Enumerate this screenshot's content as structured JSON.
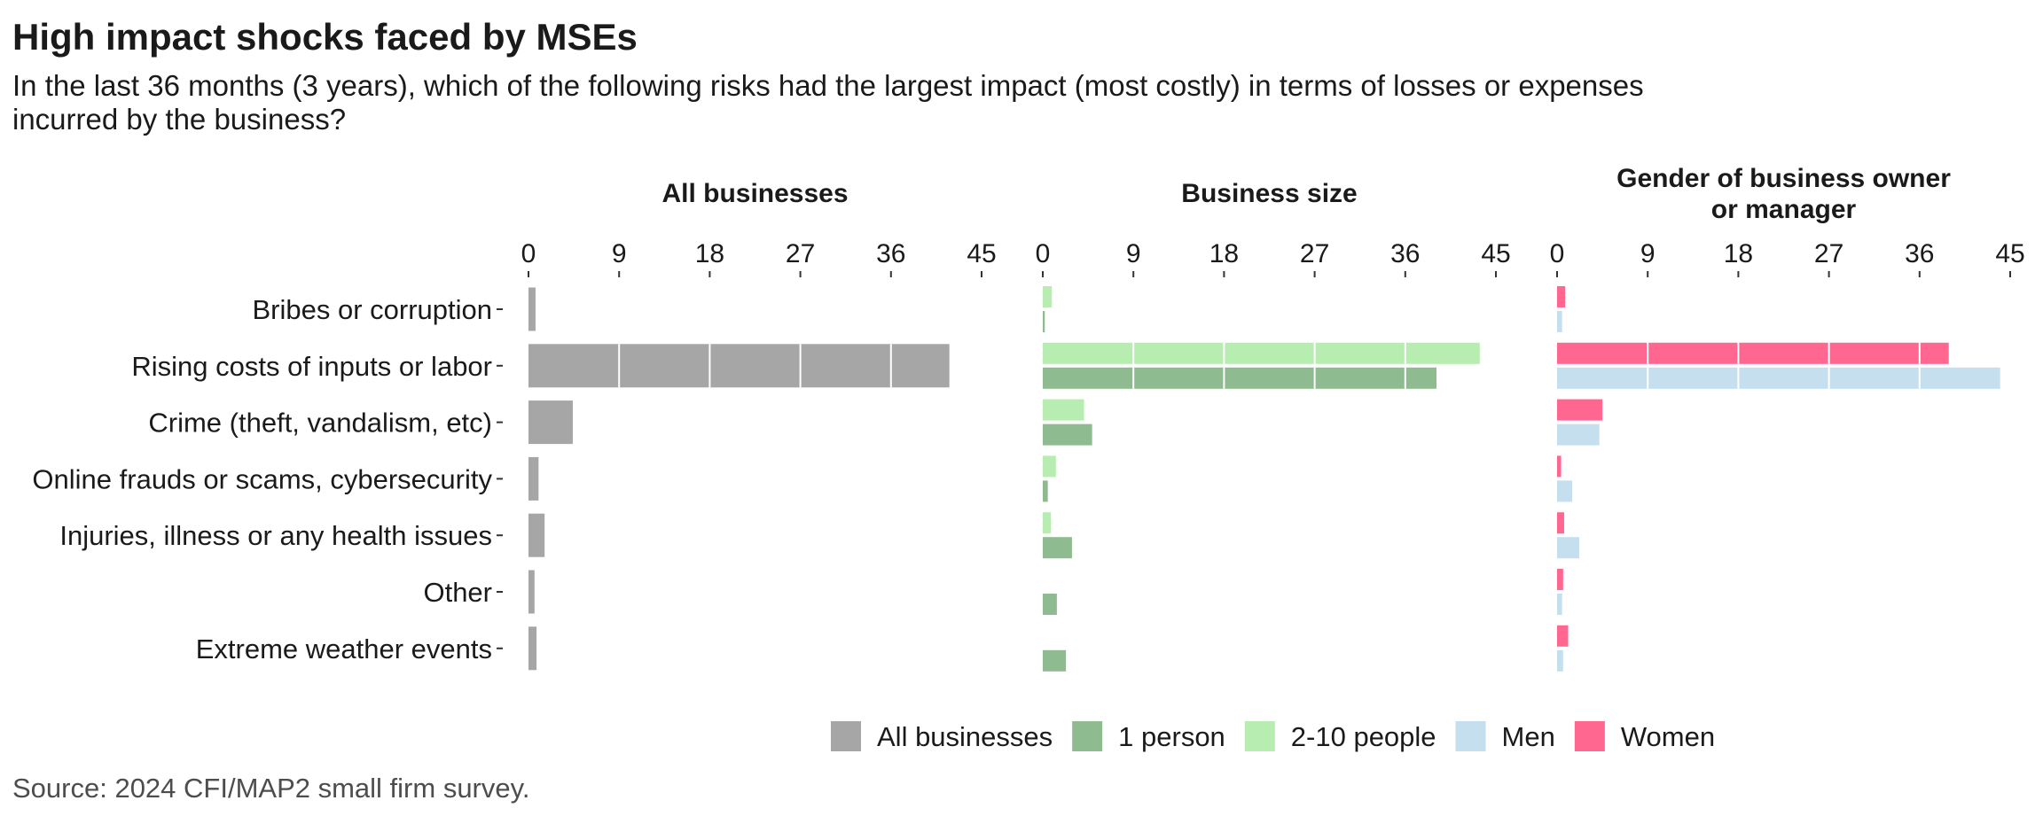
{
  "title": "High impact shocks faced by MSEs",
  "subtitle": "In the last 36 months (3 years), which of the following risks had the largest impact (most costly) in terms of losses or expenses incurred by the business?",
  "source": "Source: 2024 CFI/MAP2 small firm survey.",
  "chart_data": {
    "type": "bar",
    "orientation": "horizontal",
    "categories": [
      "Bribes or corruption",
      "Rising costs of inputs or labor",
      "Crime (theft, vandalism, etc)",
      "Online frauds or scams, cybersecurity",
      "Injuries, illness or any health issues",
      "Other",
      "Extreme weather events"
    ],
    "x_ticks": [
      0,
      9,
      18,
      27,
      36,
      45
    ],
    "xlim": [
      0,
      45
    ],
    "grid": "vertical white lines inside bars",
    "legend_position": "bottom",
    "panels": [
      {
        "title": "All businesses",
        "series": [
          {
            "name": "All businesses",
            "color": "#a6a6a6",
            "values": [
              0.7,
              41.8,
              4.4,
              1.0,
              1.6,
              0.6,
              0.8
            ]
          }
        ]
      },
      {
        "title": "Business size",
        "series": [
          {
            "name": "2-10 people",
            "color": "#b7edb0",
            "values": [
              0.9,
              43.4,
              4.1,
              1.3,
              0.8,
              0.0,
              0.0
            ]
          },
          {
            "name": "1 person",
            "color": "#8fbb90",
            "values": [
              0.2,
              39.1,
              4.9,
              0.5,
              2.9,
              1.4,
              2.3
            ]
          }
        ]
      },
      {
        "title": "Gender of business owner or manager",
        "series": [
          {
            "name": "Women",
            "color": "#ff6690",
            "values": [
              0.8,
              38.9,
              4.5,
              0.4,
              0.7,
              0.6,
              1.1
            ]
          },
          {
            "name": "Men",
            "color": "#c5dfef",
            "values": [
              0.5,
              44.0,
              4.2,
              1.5,
              2.2,
              0.5,
              0.6
            ]
          }
        ]
      }
    ],
    "legend": [
      {
        "label": "All businesses",
        "color": "#a6a6a6"
      },
      {
        "label": "1 person",
        "color": "#8fbb90"
      },
      {
        "label": "2-10 people",
        "color": "#b7edb0"
      },
      {
        "label": "Men",
        "color": "#c5dfef"
      },
      {
        "label": "Women",
        "color": "#ff6690"
      }
    ]
  }
}
